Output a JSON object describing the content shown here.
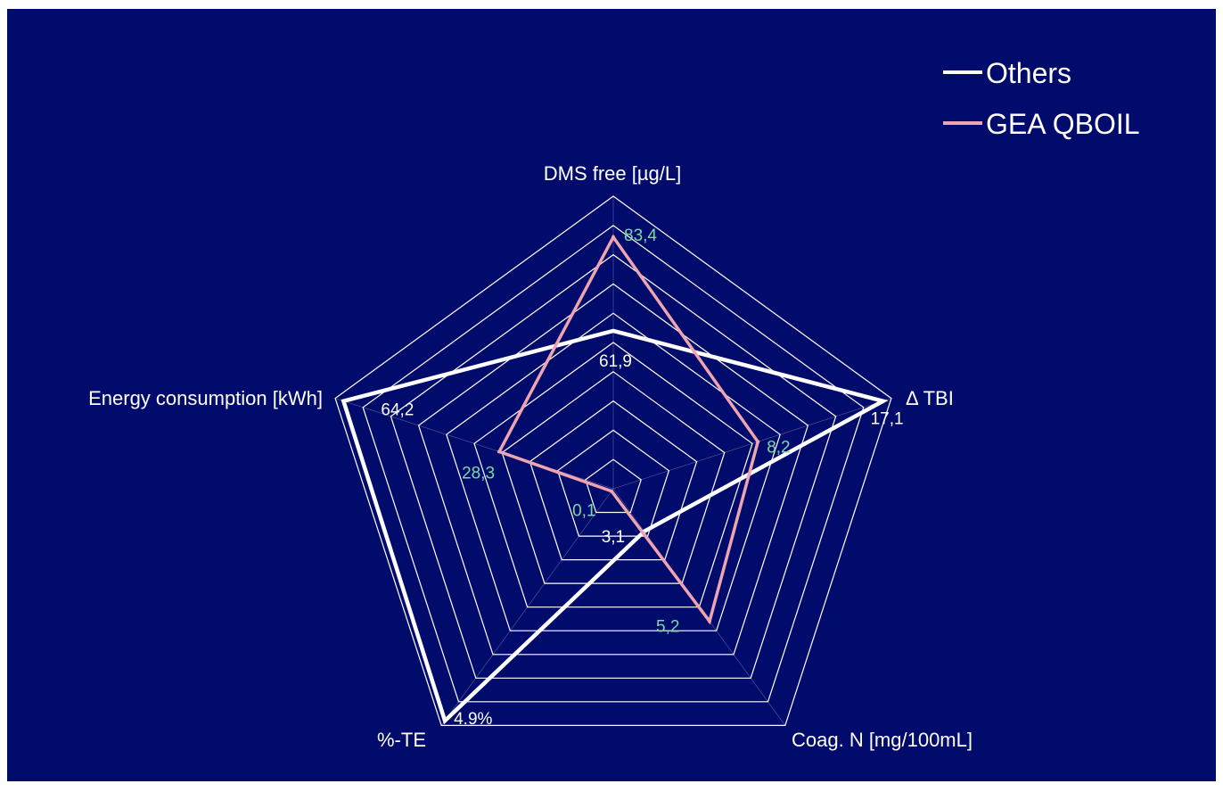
{
  "chart_data": {
    "type": "radar",
    "title": "",
    "axes": [
      "DMS free [µg/L]",
      "Δ TBI",
      "Coag. N [mg/100mL]",
      "%-TE",
      "Energy consumption [kWh]"
    ],
    "grid_levels": 10,
    "series": [
      {
        "name": "Others",
        "color": "#ffffff",
        "values": [
          0.54,
          0.97,
          0.18,
          0.98,
          0.97
        ],
        "labels": [
          "61,9",
          "17,1",
          "3,1",
          "4.9%",
          "64,2"
        ]
      },
      {
        "name": "GEA QBOIL",
        "color": "#f0a3b0",
        "values": [
          0.86,
          0.52,
          0.56,
          0.01,
          0.41
        ],
        "labels": [
          "83,4",
          "8,2",
          "5,2",
          "0,1",
          "28,3"
        ]
      }
    ],
    "label_colors": {
      "Others": "#ffffff",
      "GEA QBOIL": "#7fd6a8"
    },
    "legend": {
      "position": "top-right",
      "entries": [
        "Others",
        "GEA QBOIL"
      ]
    },
    "background": "#000b6b",
    "grid_color": "#ffffff"
  }
}
